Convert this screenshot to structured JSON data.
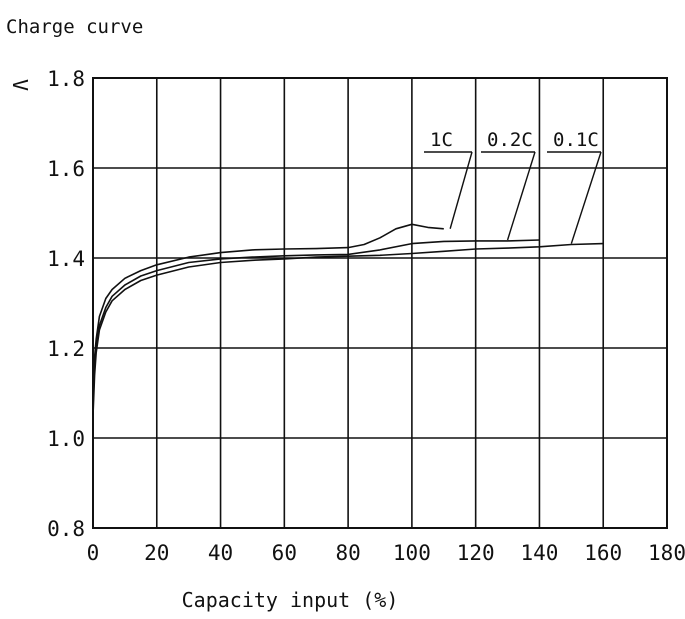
{
  "chart_data": {
    "type": "line",
    "title": "Charge curve",
    "xlabel": "Capacity input (%)",
    "ylabel": "V",
    "xlim": [
      0,
      180
    ],
    "ylim": [
      0.8,
      1.8
    ],
    "x_ticks": [
      "0",
      "20",
      "40",
      "60",
      "80",
      "100",
      "120",
      "140",
      "160",
      "180"
    ],
    "y_ticks": [
      "1.8",
      "1.6",
      "1.4",
      "1.2",
      "1.0",
      "0.8"
    ],
    "grid": true,
    "series": [
      {
        "name": "1C",
        "x": [
          0,
          0.5,
          1,
          2,
          4,
          6,
          10,
          15,
          20,
          30,
          40,
          50,
          60,
          70,
          80,
          85,
          90,
          95,
          100,
          105,
          110
        ],
        "y": [
          1.08,
          1.18,
          1.22,
          1.27,
          1.31,
          1.33,
          1.355,
          1.372,
          1.385,
          1.402,
          1.412,
          1.418,
          1.42,
          1.421,
          1.423,
          1.43,
          1.445,
          1.465,
          1.475,
          1.468,
          1.465
        ]
      },
      {
        "name": "0.2C",
        "x": [
          0,
          0.5,
          1,
          2,
          4,
          6,
          10,
          15,
          20,
          30,
          40,
          50,
          60,
          70,
          80,
          90,
          100,
          110,
          120,
          130,
          140
        ],
        "y": [
          1.07,
          1.16,
          1.2,
          1.25,
          1.29,
          1.315,
          1.34,
          1.36,
          1.372,
          1.39,
          1.398,
          1.402,
          1.405,
          1.407,
          1.408,
          1.418,
          1.432,
          1.437,
          1.438,
          1.438,
          1.44
        ]
      },
      {
        "name": "0.1C",
        "x": [
          0,
          0.5,
          1,
          2,
          4,
          6,
          10,
          15,
          20,
          30,
          40,
          50,
          60,
          70,
          80,
          90,
          100,
          110,
          120,
          130,
          140,
          150,
          160
        ],
        "y": [
          1.05,
          1.14,
          1.19,
          1.24,
          1.28,
          1.305,
          1.33,
          1.35,
          1.362,
          1.38,
          1.39,
          1.395,
          1.398,
          1.402,
          1.404,
          1.406,
          1.41,
          1.415,
          1.42,
          1.422,
          1.425,
          1.43,
          1.432
        ]
      }
    ],
    "colors": {
      "line": "#111111",
      "grid": "#111111",
      "background": "#ffffff"
    }
  }
}
